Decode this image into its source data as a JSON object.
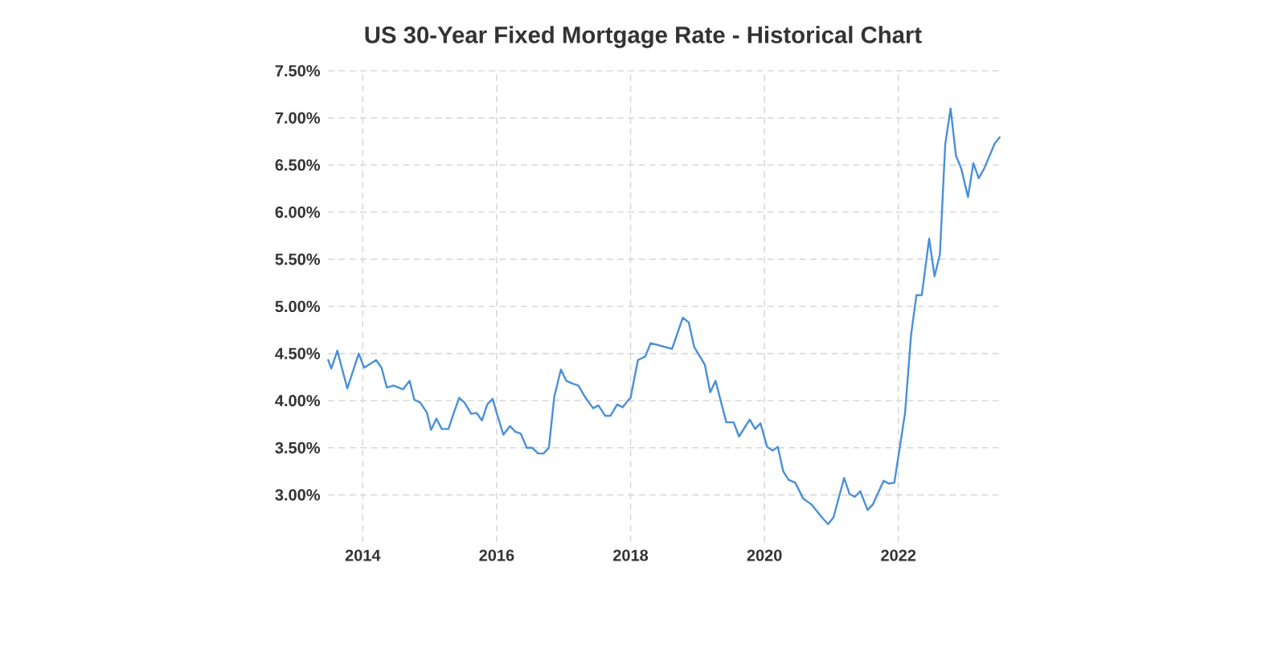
{
  "chart_data": {
    "type": "line",
    "title": "US 30-Year Fixed Mortgage Rate - Historical Chart",
    "x": [
      2013.48,
      2013.53,
      2013.62,
      2013.77,
      2013.94,
      2014.02,
      2014.2,
      2014.28,
      2014.36,
      2014.46,
      2014.6,
      2014.7,
      2014.77,
      2014.86,
      2014.96,
      2015.02,
      2015.1,
      2015.18,
      2015.28,
      2015.36,
      2015.44,
      2015.52,
      2015.62,
      2015.7,
      2015.78,
      2015.86,
      2015.94,
      2016.0,
      2016.1,
      2016.2,
      2016.28,
      2016.36,
      2016.45,
      2016.53,
      2016.62,
      2016.7,
      2016.78,
      2016.86,
      2016.96,
      2017.04,
      2017.14,
      2017.22,
      2017.32,
      2017.44,
      2017.52,
      2017.62,
      2017.7,
      2017.8,
      2017.88,
      2017.96,
      2018.0,
      2018.11,
      2018.22,
      2018.3,
      2018.62,
      2018.78,
      2018.87,
      2018.95,
      2019.11,
      2019.19,
      2019.27,
      2019.43,
      2019.54,
      2019.62,
      2019.78,
      2019.86,
      2019.94,
      2020.04,
      2020.12,
      2020.2,
      2020.28,
      2020.36,
      2020.46,
      2020.58,
      2020.7,
      2020.86,
      2020.95,
      2021.03,
      2021.19,
      2021.27,
      2021.35,
      2021.43,
      2021.54,
      2021.62,
      2021.78,
      2021.86,
      2021.94,
      2022.1,
      2022.19,
      2022.27,
      2022.35,
      2022.46,
      2022.54,
      2022.62,
      2022.7,
      2022.78,
      2022.86,
      2022.94,
      2023.04,
      2023.12,
      2023.2,
      2023.28,
      2023.44,
      2023.52
    ],
    "series": [
      {
        "color": "#4a90d9",
        "values": [
          4.44,
          4.34,
          4.53,
          4.13,
          4.5,
          4.35,
          4.43,
          4.35,
          4.14,
          4.16,
          4.12,
          4.21,
          4.01,
          3.98,
          3.87,
          3.69,
          3.81,
          3.7,
          3.7,
          3.87,
          4.03,
          3.98,
          3.86,
          3.87,
          3.79,
          3.96,
          4.02,
          3.87,
          3.64,
          3.73,
          3.67,
          3.65,
          3.5,
          3.5,
          3.44,
          3.44,
          3.5,
          4.04,
          4.33,
          4.21,
          4.18,
          4.16,
          4.04,
          3.92,
          3.95,
          3.84,
          3.84,
          3.96,
          3.93,
          4.0,
          4.03,
          4.43,
          4.47,
          4.61,
          4.55,
          4.88,
          4.83,
          4.57,
          4.38,
          4.09,
          4.21,
          3.77,
          3.77,
          3.62,
          3.8,
          3.7,
          3.76,
          3.51,
          3.47,
          3.51,
          3.25,
          3.16,
          3.13,
          2.96,
          2.9,
          2.76,
          2.69,
          2.76,
          3.18,
          3.01,
          2.98,
          3.04,
          2.84,
          2.9,
          3.15,
          3.12,
          3.13,
          3.87,
          4.7,
          5.12,
          5.12,
          5.72,
          5.32,
          5.55,
          6.72,
          7.1,
          6.6,
          6.46,
          6.16,
          6.52,
          6.36,
          6.46,
          6.73,
          6.8
        ]
      }
    ],
    "xlim": [
      2013.48,
      2023.54
    ],
    "ylim": [
      2.5,
      7.5
    ],
    "xticks": [
      2014,
      2016,
      2018,
      2020,
      2022
    ],
    "yticks": [
      {
        "value": 3.0,
        "label": "3.00%"
      },
      {
        "value": 3.5,
        "label": "3.50%"
      },
      {
        "value": 4.0,
        "label": "4.00%"
      },
      {
        "value": 4.5,
        "label": "4.50%"
      },
      {
        "value": 5.0,
        "label": "5.00%"
      },
      {
        "value": 5.5,
        "label": "5.50%"
      },
      {
        "value": 6.0,
        "label": "6.00%"
      },
      {
        "value": 6.5,
        "label": "6.50%"
      },
      {
        "value": 7.0,
        "label": "7.00%"
      },
      {
        "value": 7.5,
        "label": "7.50%"
      }
    ],
    "grid": true
  }
}
